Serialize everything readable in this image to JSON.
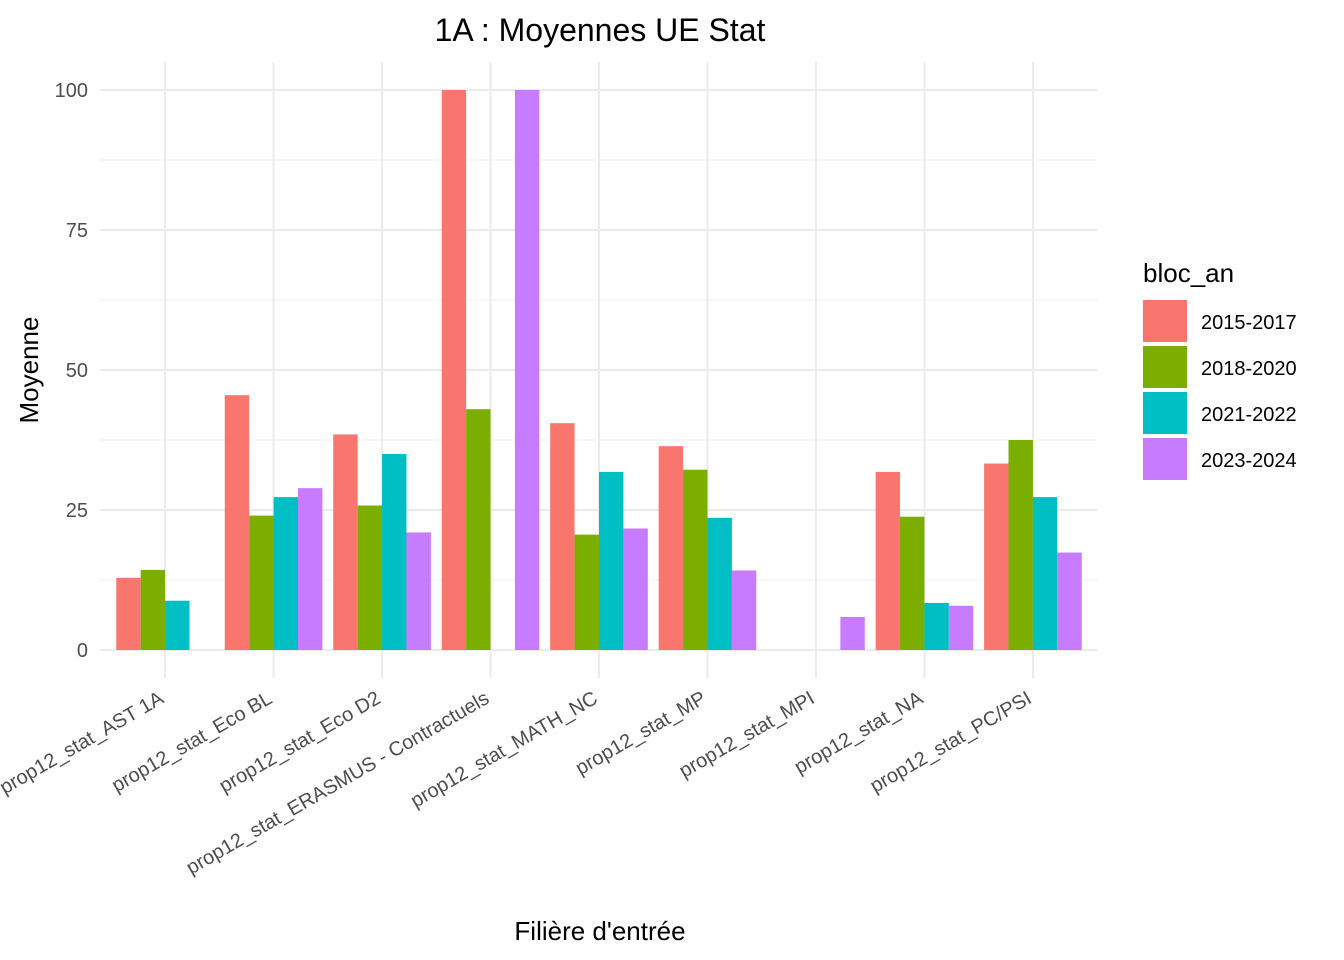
{
  "chart_data": {
    "type": "bar",
    "title": "1A : Moyennes UE Stat",
    "xlabel": "Filière d'entrée",
    "ylabel": "Moyenne",
    "ylim": [
      -5,
      105
    ],
    "yticks": [
      0,
      25,
      50,
      75,
      100
    ],
    "grid": true,
    "legend": {
      "title": "bloc_an",
      "position": "right"
    },
    "categories": [
      "prop12_stat_AST 1A",
      "prop12_stat_Eco BL",
      "prop12_stat_Eco D2",
      "prop12_stat_ERASMUS - Contractuels",
      "prop12_stat_MATH_NC",
      "prop12_stat_MP",
      "prop12_stat_MPI",
      "prop12_stat_NA",
      "prop12_stat_PC/PSI"
    ],
    "series": [
      {
        "name": "2015-2017",
        "color": "#F8766D",
        "values": [
          12.9,
          45.5,
          38.5,
          100,
          40.5,
          36.4,
          null,
          31.8,
          33.3
        ]
      },
      {
        "name": "2018-2020",
        "color": "#7CAE00",
        "values": [
          14.3,
          24.0,
          25.8,
          43.0,
          20.6,
          32.2,
          null,
          23.8,
          37.5
        ]
      },
      {
        "name": "2021-2022",
        "color": "#00BFC4",
        "values": [
          8.8,
          27.3,
          35.0,
          null,
          31.8,
          23.6,
          null,
          8.4,
          27.3
        ]
      },
      {
        "name": "2023-2024",
        "color": "#C77CFF",
        "values": [
          null,
          28.9,
          21.0,
          100,
          21.7,
          14.2,
          5.9,
          7.9,
          17.4
        ]
      }
    ]
  }
}
